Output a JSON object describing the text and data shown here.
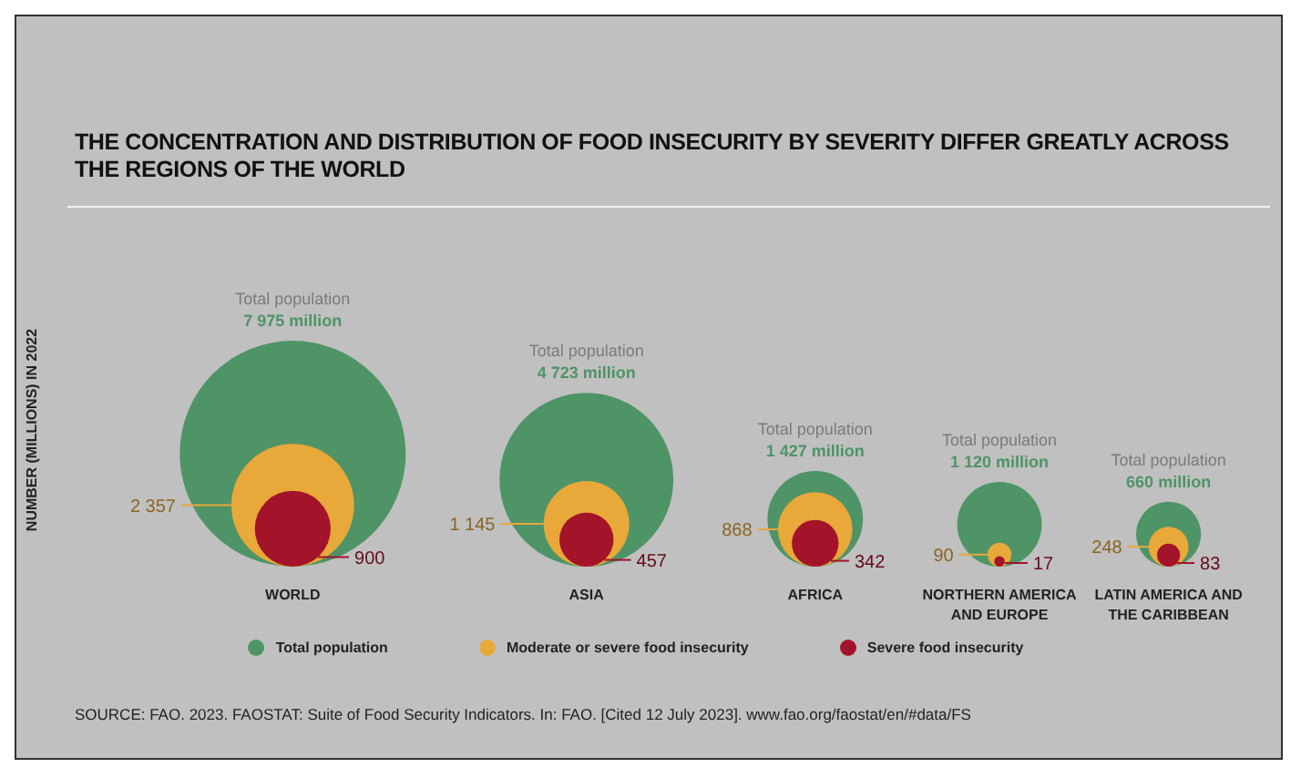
{
  "chart_data": {
    "type": "other",
    "title": "THE CONCENTRATION AND DISTRIBUTION OF FOOD INSECURITY BY SEVERITY DIFFER GREATLY ACROSS THE REGIONS OF THE WORLD",
    "ylabel": "NUMBER (MILLIONS) IN 2022",
    "categories": [
      "WORLD",
      "ASIA",
      "AFRICA",
      "NORTHERN AMERICA AND EUROPE",
      "LATIN AMERICA AND THE CARIBBEAN"
    ],
    "series": [
      {
        "name": "Total population",
        "color": "#4e9466",
        "values": [
          7975,
          4723,
          1427,
          1120,
          660
        ],
        "value_labels": [
          "7 975 million",
          "4 723 million",
          "1 427 million",
          "1 120 million",
          "660 million"
        ]
      },
      {
        "name": "Moderate or severe food insecurity",
        "color": "#e8a83a",
        "values": [
          2357,
          1145,
          868,
          90,
          248
        ],
        "value_labels": [
          "2 357",
          "1 145",
          "868",
          "90",
          "248"
        ]
      },
      {
        "name": "Severe food insecurity",
        "color": "#a3142a",
        "values": [
          900,
          457,
          342,
          17,
          83
        ],
        "value_labels": [
          "900",
          "457",
          "342",
          "17",
          "83"
        ]
      }
    ],
    "legend": "bottom",
    "annotations": [
      {
        "text": "Total population",
        "x": "WORLD"
      },
      {
        "text": "Total population",
        "x": "ASIA"
      },
      {
        "text": "Total population",
        "x": "AFRICA"
      },
      {
        "text": "Total population",
        "x": "NORTHERN AMERICA AND EUROPE"
      },
      {
        "text": "Total population",
        "x": "LATIN AMERICA AND THE CARIBBEAN"
      },
      "SOURCE: FAO. 2023. FAOSTAT: Suite of Food Security Indicators. In: FAO. [Cited 12 July 2023]. www.fao.org/faostat/en/#data/FS"
    ]
  }
}
